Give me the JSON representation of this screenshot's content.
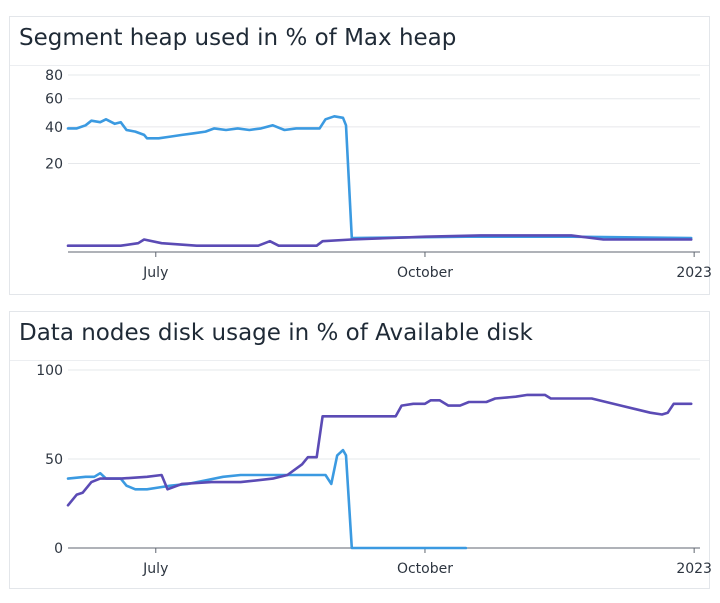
{
  "chart_data": [
    {
      "type": "line",
      "title": "Segment heap used in % of Max heap",
      "x_type": "date",
      "x_ticks": [
        {
          "date": "2022-07-01",
          "label": "July"
        },
        {
          "date": "2022-10-01",
          "label": "October"
        },
        {
          "date": "2023-01-01",
          "label": "2023"
        }
      ],
      "xlim": [
        "2022-06-01",
        "2023-01-03"
      ],
      "y_scale": "sqrt",
      "y_ticks": [
        20,
        40,
        60,
        80
      ],
      "ylim": [
        0,
        80
      ],
      "grid": true,
      "series": [
        {
          "color": "#3b9ae1",
          "points": [
            [
              "2022-06-01",
              39
            ],
            [
              "2022-06-04",
              39
            ],
            [
              "2022-06-07",
              41
            ],
            [
              "2022-06-09",
              44
            ],
            [
              "2022-06-12",
              43
            ],
            [
              "2022-06-14",
              45
            ],
            [
              "2022-06-17",
              42
            ],
            [
              "2022-06-19",
              43
            ],
            [
              "2022-06-21",
              38
            ],
            [
              "2022-06-24",
              37
            ],
            [
              "2022-06-27",
              35
            ],
            [
              "2022-06-28",
              33
            ],
            [
              "2022-07-02",
              33
            ],
            [
              "2022-07-06",
              34
            ],
            [
              "2022-07-10",
              35
            ],
            [
              "2022-07-14",
              36
            ],
            [
              "2022-07-18",
              37
            ],
            [
              "2022-07-21",
              39
            ],
            [
              "2022-07-25",
              38
            ],
            [
              "2022-07-29",
              39
            ],
            [
              "2022-08-02",
              38
            ],
            [
              "2022-08-06",
              39
            ],
            [
              "2022-08-10",
              41
            ],
            [
              "2022-08-14",
              38
            ],
            [
              "2022-08-18",
              39
            ],
            [
              "2022-08-22",
              39
            ],
            [
              "2022-08-26",
              39
            ],
            [
              "2022-08-28",
              45
            ],
            [
              "2022-08-31",
              47
            ],
            [
              "2022-09-03",
              46
            ],
            [
              "2022-09-04",
              41
            ],
            [
              "2022-09-06",
              0.5
            ],
            [
              "2022-10-15",
              0.6
            ],
            [
              "2022-11-20",
              0.6
            ],
            [
              "2022-12-31",
              0.5
            ]
          ]
        },
        {
          "color": "#5b4bb5",
          "points": [
            [
              "2022-06-01",
              0.1
            ],
            [
              "2022-06-19",
              0.1
            ],
            [
              "2022-06-25",
              0.2
            ],
            [
              "2022-06-27",
              0.4
            ],
            [
              "2022-07-03",
              0.2
            ],
            [
              "2022-07-15",
              0.1
            ],
            [
              "2022-08-05",
              0.1
            ],
            [
              "2022-08-09",
              0.3
            ],
            [
              "2022-08-12",
              0.1
            ],
            [
              "2022-08-25",
              0.1
            ],
            [
              "2022-08-27",
              0.3
            ],
            [
              "2022-09-06",
              0.4
            ],
            [
              "2022-10-01",
              0.6
            ],
            [
              "2022-10-20",
              0.7
            ],
            [
              "2022-11-20",
              0.7
            ],
            [
              "2022-12-01",
              0.4
            ],
            [
              "2022-12-31",
              0.4
            ]
          ]
        }
      ]
    },
    {
      "type": "line",
      "title": "Data nodes disk usage in % of Available disk",
      "x_type": "date",
      "x_ticks": [
        {
          "date": "2022-07-01",
          "label": "July"
        },
        {
          "date": "2022-10-01",
          "label": "October"
        },
        {
          "date": "2023-01-01",
          "label": "2023"
        }
      ],
      "xlim": [
        "2022-06-01",
        "2023-01-03"
      ],
      "y_scale": "linear",
      "y_ticks": [
        0,
        50,
        100
      ],
      "ylim": [
        0,
        100
      ],
      "grid": true,
      "series": [
        {
          "color": "#3b9ae1",
          "points": [
            [
              "2022-06-01",
              39
            ],
            [
              "2022-06-07",
              40
            ],
            [
              "2022-06-10",
              40
            ],
            [
              "2022-06-12",
              42
            ],
            [
              "2022-06-14",
              39
            ],
            [
              "2022-06-19",
              39
            ],
            [
              "2022-06-21",
              35
            ],
            [
              "2022-06-24",
              33
            ],
            [
              "2022-06-28",
              33
            ],
            [
              "2022-07-02",
              34
            ],
            [
              "2022-07-06",
              35
            ],
            [
              "2022-07-12",
              36
            ],
            [
              "2022-07-18",
              38
            ],
            [
              "2022-07-24",
              40
            ],
            [
              "2022-07-30",
              41
            ],
            [
              "2022-08-10",
              41
            ],
            [
              "2022-08-28",
              41
            ],
            [
              "2022-08-30",
              36
            ],
            [
              "2022-09-01",
              52
            ],
            [
              "2022-09-03",
              55
            ],
            [
              "2022-09-04",
              52
            ],
            [
              "2022-09-06",
              0
            ],
            [
              "2022-10-15",
              0
            ]
          ]
        },
        {
          "color": "#5b4bb5",
          "points": [
            [
              "2022-06-01",
              24
            ],
            [
              "2022-06-04",
              30
            ],
            [
              "2022-06-06",
              31
            ],
            [
              "2022-06-09",
              37
            ],
            [
              "2022-06-12",
              39
            ],
            [
              "2022-06-19",
              39
            ],
            [
              "2022-06-28",
              40
            ],
            [
              "2022-07-03",
              41
            ],
            [
              "2022-07-05",
              33
            ],
            [
              "2022-07-10",
              36
            ],
            [
              "2022-07-20",
              37
            ],
            [
              "2022-07-30",
              37
            ],
            [
              "2022-08-10",
              39
            ],
            [
              "2022-08-15",
              41
            ],
            [
              "2022-08-20",
              47
            ],
            [
              "2022-08-22",
              51
            ],
            [
              "2022-08-25",
              51
            ],
            [
              "2022-08-27",
              74
            ],
            [
              "2022-09-10",
              74
            ],
            [
              "2022-09-21",
              74
            ],
            [
              "2022-09-23",
              80
            ],
            [
              "2022-09-27",
              81
            ],
            [
              "2022-10-01",
              81
            ],
            [
              "2022-10-03",
              83
            ],
            [
              "2022-10-06",
              83
            ],
            [
              "2022-10-09",
              80
            ],
            [
              "2022-10-13",
              80
            ],
            [
              "2022-10-16",
              82
            ],
            [
              "2022-10-22",
              82
            ],
            [
              "2022-10-25",
              84
            ],
            [
              "2022-11-01",
              85
            ],
            [
              "2022-11-05",
              86
            ],
            [
              "2022-11-11",
              86
            ],
            [
              "2022-11-13",
              84
            ],
            [
              "2022-11-27",
              84
            ],
            [
              "2022-12-07",
              80
            ],
            [
              "2022-12-17",
              76
            ],
            [
              "2022-12-21",
              75
            ],
            [
              "2022-12-23",
              76
            ],
            [
              "2022-12-25",
              81
            ],
            [
              "2022-12-31",
              81
            ]
          ]
        }
      ]
    }
  ]
}
